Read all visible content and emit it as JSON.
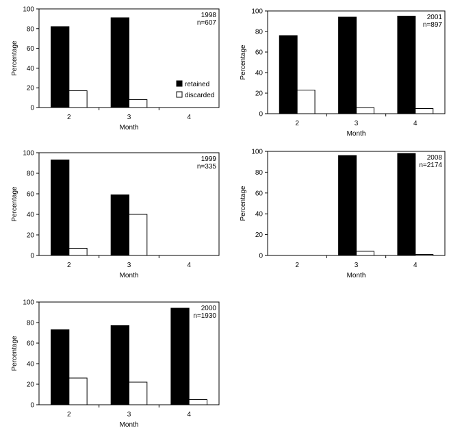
{
  "chart_data": [
    {
      "type": "bar",
      "annotation": [
        "1998",
        "n=607"
      ],
      "categories": [
        "2",
        "3",
        "4"
      ],
      "series": [
        {
          "name": "retained",
          "values": [
            82,
            91,
            0
          ],
          "color": "#000000"
        },
        {
          "name": "discarded",
          "values": [
            17,
            8,
            0
          ],
          "color": "#ffffff"
        }
      ],
      "xlabel": "Month",
      "ylabel": "Percentage",
      "ylim": [
        0,
        100
      ],
      "yticks": [
        0,
        20,
        40,
        60,
        80,
        100
      ],
      "grid": false,
      "legend": "bottom-right"
    },
    {
      "type": "bar",
      "annotation": [
        "2001",
        "n=897"
      ],
      "categories": [
        "2",
        "3",
        "4"
      ],
      "series": [
        {
          "name": "retained",
          "values": [
            76,
            94,
            95
          ],
          "color": "#000000"
        },
        {
          "name": "discarded",
          "values": [
            23,
            6,
            5
          ],
          "color": "#ffffff"
        }
      ],
      "xlabel": "Month",
      "ylabel": "Percentage",
      "ylim": [
        0,
        100
      ],
      "yticks": [
        0,
        20,
        40,
        60,
        80,
        100
      ],
      "grid": false
    },
    {
      "type": "bar",
      "annotation": [
        "1999",
        "n=335"
      ],
      "categories": [
        "2",
        "3",
        "4"
      ],
      "series": [
        {
          "name": "retained",
          "values": [
            93,
            59,
            0
          ],
          "color": "#000000"
        },
        {
          "name": "discarded",
          "values": [
            7,
            40,
            0
          ],
          "color": "#ffffff"
        }
      ],
      "xlabel": "Month",
      "ylabel": "Percentage",
      "ylim": [
        0,
        100
      ],
      "yticks": [
        0,
        20,
        40,
        60,
        80,
        100
      ],
      "grid": false
    },
    {
      "type": "bar",
      "annotation": [
        "2008",
        "n=2174"
      ],
      "categories": [
        "2",
        "3",
        "4"
      ],
      "series": [
        {
          "name": "retained",
          "values": [
            0,
            96,
            98
          ],
          "color": "#000000"
        },
        {
          "name": "discarded",
          "values": [
            0,
            4,
            1
          ],
          "color": "#ffffff"
        }
      ],
      "xlabel": "Month",
      "ylabel": "Percentage",
      "ylim": [
        0,
        100
      ],
      "yticks": [
        0,
        20,
        40,
        60,
        80,
        100
      ],
      "grid": false
    },
    {
      "type": "bar",
      "annotation": [
        "2000",
        "n=1930"
      ],
      "categories": [
        "2",
        "3",
        "4"
      ],
      "series": [
        {
          "name": "retained",
          "values": [
            73,
            77,
            94
          ],
          "color": "#000000"
        },
        {
          "name": "discarded",
          "values": [
            26,
            22,
            5
          ],
          "color": "#ffffff"
        }
      ],
      "xlabel": "Month",
      "ylabel": "Percentage",
      "ylim": [
        0,
        100
      ],
      "yticks": [
        0,
        20,
        40,
        60,
        80,
        100
      ],
      "grid": false
    }
  ]
}
